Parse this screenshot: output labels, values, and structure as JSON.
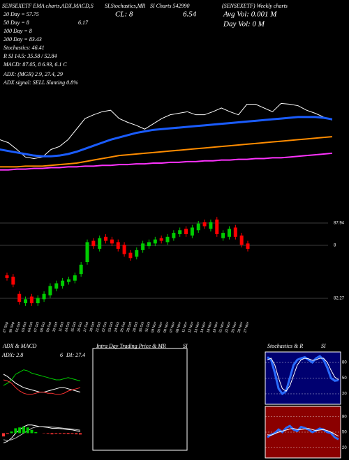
{
  "header": {
    "top_1": "SENSEXETF EMA charts,ADX,MACD,S",
    "top_2": "SI,Stochastics,MR",
    "top_3": "SI Charts 542990",
    "top_4": "(SENSEXETF) Weekly charts",
    "ema_20": "20 Day = 57.75",
    "ema_50": "50 Day = 8",
    "ema_50_b": "6.17",
    "ema_100": "100 Day = 8",
    "ema_200": "200 Day = 83.43",
    "stochastics": "Stochastics: 46.41",
    "rsi": "R SI 14.5: 35.58 / 52.84",
    "macd": "MACD: 87.05, 8 6.93, 6.1 C",
    "adx": "ADX: (MGR) 2.9, 27.4, 29",
    "adx_signal": "ADX  signal: SELL Slanting 0.8%",
    "close": "CL: 8",
    "close_b": "6.54",
    "avg_vol": "Avg Vol: 0.001 M",
    "day_vol": "Day Vol: 0  M"
  },
  "chart_data": [
    {
      "type": "candlestick",
      "dates": [
        "27 Sep",
        "30 Sep",
        "01 Oct",
        "03 Oct",
        "04 Oct",
        "07 Oct",
        "08 Oct",
        "09 Oct",
        "10 Oct",
        "11 Oct",
        "14 Oct",
        "15 Oct",
        "16 Oct",
        "17 Oct",
        "18 Oct",
        "21 Oct",
        "22 Oct",
        "23 Oct",
        "24 Oct",
        "25 Oct",
        "28 Oct",
        "29 Oct",
        "30 Oct",
        "31 Oct",
        "04 Nov",
        "05 Nov",
        "06 Nov",
        "07 Nov",
        "08 Nov",
        "11 Nov",
        "12 Nov",
        "13 Nov",
        "14 Nov",
        "18 Nov",
        "19 Nov",
        "21 Nov",
        "22 Nov",
        "25 Nov",
        "26 Nov",
        "27 Nov"
      ],
      "open": [
        84.0,
        83.9,
        82.6,
        81.9,
        82.4,
        81.9,
        82.2,
        82.5,
        83.0,
        83.2,
        83.5,
        83.6,
        84.1,
        85.0,
        86.6,
        86.0,
        86.9,
        86.7,
        86.5,
        86.3,
        85.7,
        85.4,
        85.9,
        86.2,
        86.4,
        86.8,
        86.5,
        86.8,
        87.1,
        87.5,
        87.0,
        87.4,
        88.0,
        87.5,
        88.2,
        86.8,
        86.9,
        87.6,
        87.0,
        86.4
      ],
      "high": [
        84.2,
        84.1,
        82.8,
        82.4,
        82.6,
        82.5,
        82.8,
        83.4,
        83.6,
        83.8,
        83.9,
        84.2,
        85.0,
        86.7,
        86.8,
        87.0,
        87.1,
        86.9,
        86.7,
        86.5,
        85.9,
        86.1,
        86.6,
        86.7,
        86.9,
        87.0,
        87.1,
        87.4,
        87.6,
        87.7,
        87.8,
        88.1,
        88.2,
        88.2,
        88.4,
        87.4,
        87.7,
        87.8,
        87.2,
        86.6
      ],
      "low": [
        83.6,
        83.1,
        81.8,
        81.7,
        81.7,
        81.7,
        82.0,
        82.3,
        82.8,
        83.0,
        83.3,
        83.4,
        83.9,
        84.8,
        86.0,
        85.8,
        86.4,
        86.2,
        85.8,
        85.4,
        85.1,
        85.2,
        85.7,
        86.0,
        86.2,
        86.4,
        86.3,
        86.6,
        86.9,
        86.9,
        86.8,
        87.2,
        87.5,
        87.3,
        86.9,
        86.6,
        86.7,
        86.7,
        86.1,
        85.8
      ],
      "close": [
        83.8,
        83.3,
        82.0,
        82.2,
        81.9,
        82.3,
        82.6,
        83.2,
        83.4,
        83.6,
        83.7,
        84.0,
        84.8,
        86.5,
        86.2,
        86.8,
        86.6,
        86.4,
        86.0,
        85.6,
        85.3,
        85.9,
        86.4,
        86.5,
        86.7,
        86.6,
        86.9,
        87.2,
        87.4,
        87.1,
        87.6,
        87.9,
        87.7,
        88.0,
        87.1,
        87.2,
        87.5,
        86.9,
        86.3,
        86.0
      ],
      "up_color": "#00cc00",
      "down_color": "#ff0000",
      "ylim": [
        81.64,
        104.74
      ],
      "yticks": [
        87.94,
        {
          "value": 86.26,
          "label": "8"
        },
        82.27
      ],
      "ma_ylim": [
        80,
        92
      ],
      "ma_series": [
        {
          "color": "#ffffff",
          "values": [
            85.5,
            85.1,
            84.2,
            83.2,
            83.0,
            83.2,
            84.2,
            84.6,
            85.5,
            86.9,
            88.3,
            88.8,
            89.2,
            89.4,
            88.3,
            87.8,
            87.4,
            86.9,
            87.6,
            88.3,
            88.8,
            89.0,
            89.2,
            88.8,
            88.8,
            89.2,
            89.7,
            89.2,
            88.8,
            90.2,
            90.2,
            89.7,
            89.2,
            90.3,
            90.2,
            90.0,
            89.4,
            89.0,
            88.5,
            88.1
          ]
        },
        {
          "color": "#1a5cff",
          "values": [
            84.2,
            84.0,
            83.8,
            83.6,
            83.4,
            83.3,
            83.3,
            83.4,
            83.6,
            83.9,
            84.3,
            84.7,
            85.1,
            85.5,
            85.8,
            86.1,
            86.4,
            86.6,
            86.8,
            86.9,
            87.0,
            87.1,
            87.2,
            87.3,
            87.4,
            87.5,
            87.6,
            87.7,
            87.8,
            87.9,
            88.0,
            88.1,
            88.2,
            88.3,
            88.4,
            88.5,
            88.5,
            88.5,
            88.4,
            88.2
          ]
        },
        {
          "color": "#ff8c00",
          "values": [
            81.9,
            81.9,
            81.9,
            82.0,
            82.0,
            82.0,
            82.1,
            82.2,
            82.3,
            82.4,
            82.6,
            82.8,
            83.0,
            83.2,
            83.4,
            83.5,
            83.6,
            83.7,
            83.8,
            83.9,
            84.0,
            84.1,
            84.2,
            84.3,
            84.4,
            84.5,
            84.6,
            84.7,
            84.8,
            84.9,
            85.0,
            85.1,
            85.2,
            85.3,
            85.4,
            85.5,
            85.6,
            85.7,
            85.8,
            85.9
          ]
        },
        {
          "color": "#ff33ff",
          "values": [
            81.5,
            81.5,
            81.6,
            81.6,
            81.7,
            81.7,
            81.8,
            81.8,
            81.9,
            81.9,
            82.0,
            82.0,
            82.1,
            82.1,
            82.2,
            82.2,
            82.3,
            82.3,
            82.4,
            82.4,
            82.5,
            82.5,
            82.6,
            82.6,
            82.7,
            82.7,
            82.8,
            82.8,
            82.9,
            82.9,
            83.0,
            83.0,
            83.1,
            83.1,
            83.2,
            83.3,
            83.4,
            83.5,
            83.6,
            83.7
          ]
        }
      ]
    },
    {
      "type": "line",
      "title": "ADX  & MACD",
      "annotations": [
        "ADX: 2.8",
        "6",
        "DI: 27.4"
      ],
      "ylim": [
        0,
        50
      ],
      "series": [
        {
          "color": "#ffffff",
          "values": [
            30,
            28,
            25,
            22,
            20,
            18,
            17,
            16,
            15,
            14,
            14,
            15,
            16,
            17,
            18,
            18,
            17,
            16,
            15,
            14
          ]
        },
        {
          "color": "#00cc00",
          "values": [
            20,
            22,
            25,
            30,
            32,
            34,
            33,
            31,
            30,
            29,
            28,
            27,
            26,
            25,
            25,
            26,
            27,
            26,
            25,
            24
          ]
        },
        {
          "color": "#ff3333",
          "values": [
            25,
            24,
            22,
            18,
            15,
            13,
            12,
            12,
            13,
            14,
            14,
            13,
            13,
            12,
            12,
            13,
            15,
            16,
            17,
            18
          ]
        }
      ]
    },
    {
      "type": "macd",
      "ylim": [
        -1,
        1
      ],
      "histogram": {
        "up_color": "#00cc00",
        "down_color": "#ff3333",
        "values": [
          -0.2,
          -0.05,
          0.1,
          0.3,
          0.35,
          0.4,
          0.35,
          0.2,
          0.07,
          0.0,
          -0.02,
          -0.04,
          -0.07,
          -0.05,
          -0.05,
          -0.05,
          -0.06,
          -0.05,
          -0.07,
          -0.08
        ]
      },
      "series": [
        {
          "color": "#ffffff",
          "values": [
            -0.6,
            -0.5,
            -0.3,
            0.0,
            0.2,
            0.4,
            0.5,
            0.5,
            0.45,
            0.4,
            0.38,
            0.35,
            0.3,
            0.3,
            0.28,
            0.25,
            0.22,
            0.2,
            0.15,
            0.1
          ]
        },
        {
          "color": "#bbbbbb",
          "values": [
            -0.4,
            -0.45,
            -0.4,
            -0.3,
            -0.15,
            0.0,
            0.15,
            0.3,
            0.38,
            0.4,
            0.4,
            0.39,
            0.37,
            0.35,
            0.33,
            0.3,
            0.28,
            0.25,
            0.22,
            0.18
          ]
        }
      ]
    },
    {
      "type": "intraday",
      "title": "Intra Day Trading Price  & MR",
      "subtitle": "SI"
    },
    {
      "type": "line",
      "title": "Stochastics  & R",
      "subtitle": "SI",
      "background": "#000070",
      "ylim": [
        0,
        100
      ],
      "yticks": [
        80,
        50,
        20
      ],
      "series": [
        {
          "color": "#2a6cff",
          "width": 3,
          "values": [
            90,
            85,
            60,
            30,
            20,
            25,
            50,
            75,
            85,
            88,
            90,
            85,
            80,
            88,
            92,
            85,
            70,
            50,
            45,
            46
          ]
        },
        {
          "color": "#ffffff",
          "values": [
            85,
            88,
            75,
            50,
            30,
            25,
            35,
            55,
            75,
            85,
            88,
            87,
            84,
            85,
            88,
            88,
            80,
            65,
            52,
            47
          ]
        }
      ]
    },
    {
      "type": "line",
      "background": "#8b0000",
      "ylim": [
        0,
        100
      ],
      "yticks": [
        80,
        50,
        20
      ],
      "series": [
        {
          "color": "#2a6cff",
          "width": 3,
          "values": [
            40,
            45,
            48,
            55,
            50,
            58,
            62,
            55,
            52,
            60,
            58,
            55,
            50,
            53,
            57,
            55,
            50,
            48,
            40,
            36
          ]
        },
        {
          "color": "#ffffff",
          "values": [
            45,
            44,
            47,
            50,
            52,
            54,
            56,
            57,
            55,
            55,
            56,
            57,
            55,
            53,
            54,
            55,
            53,
            50,
            46,
            42
          ]
        }
      ]
    }
  ]
}
